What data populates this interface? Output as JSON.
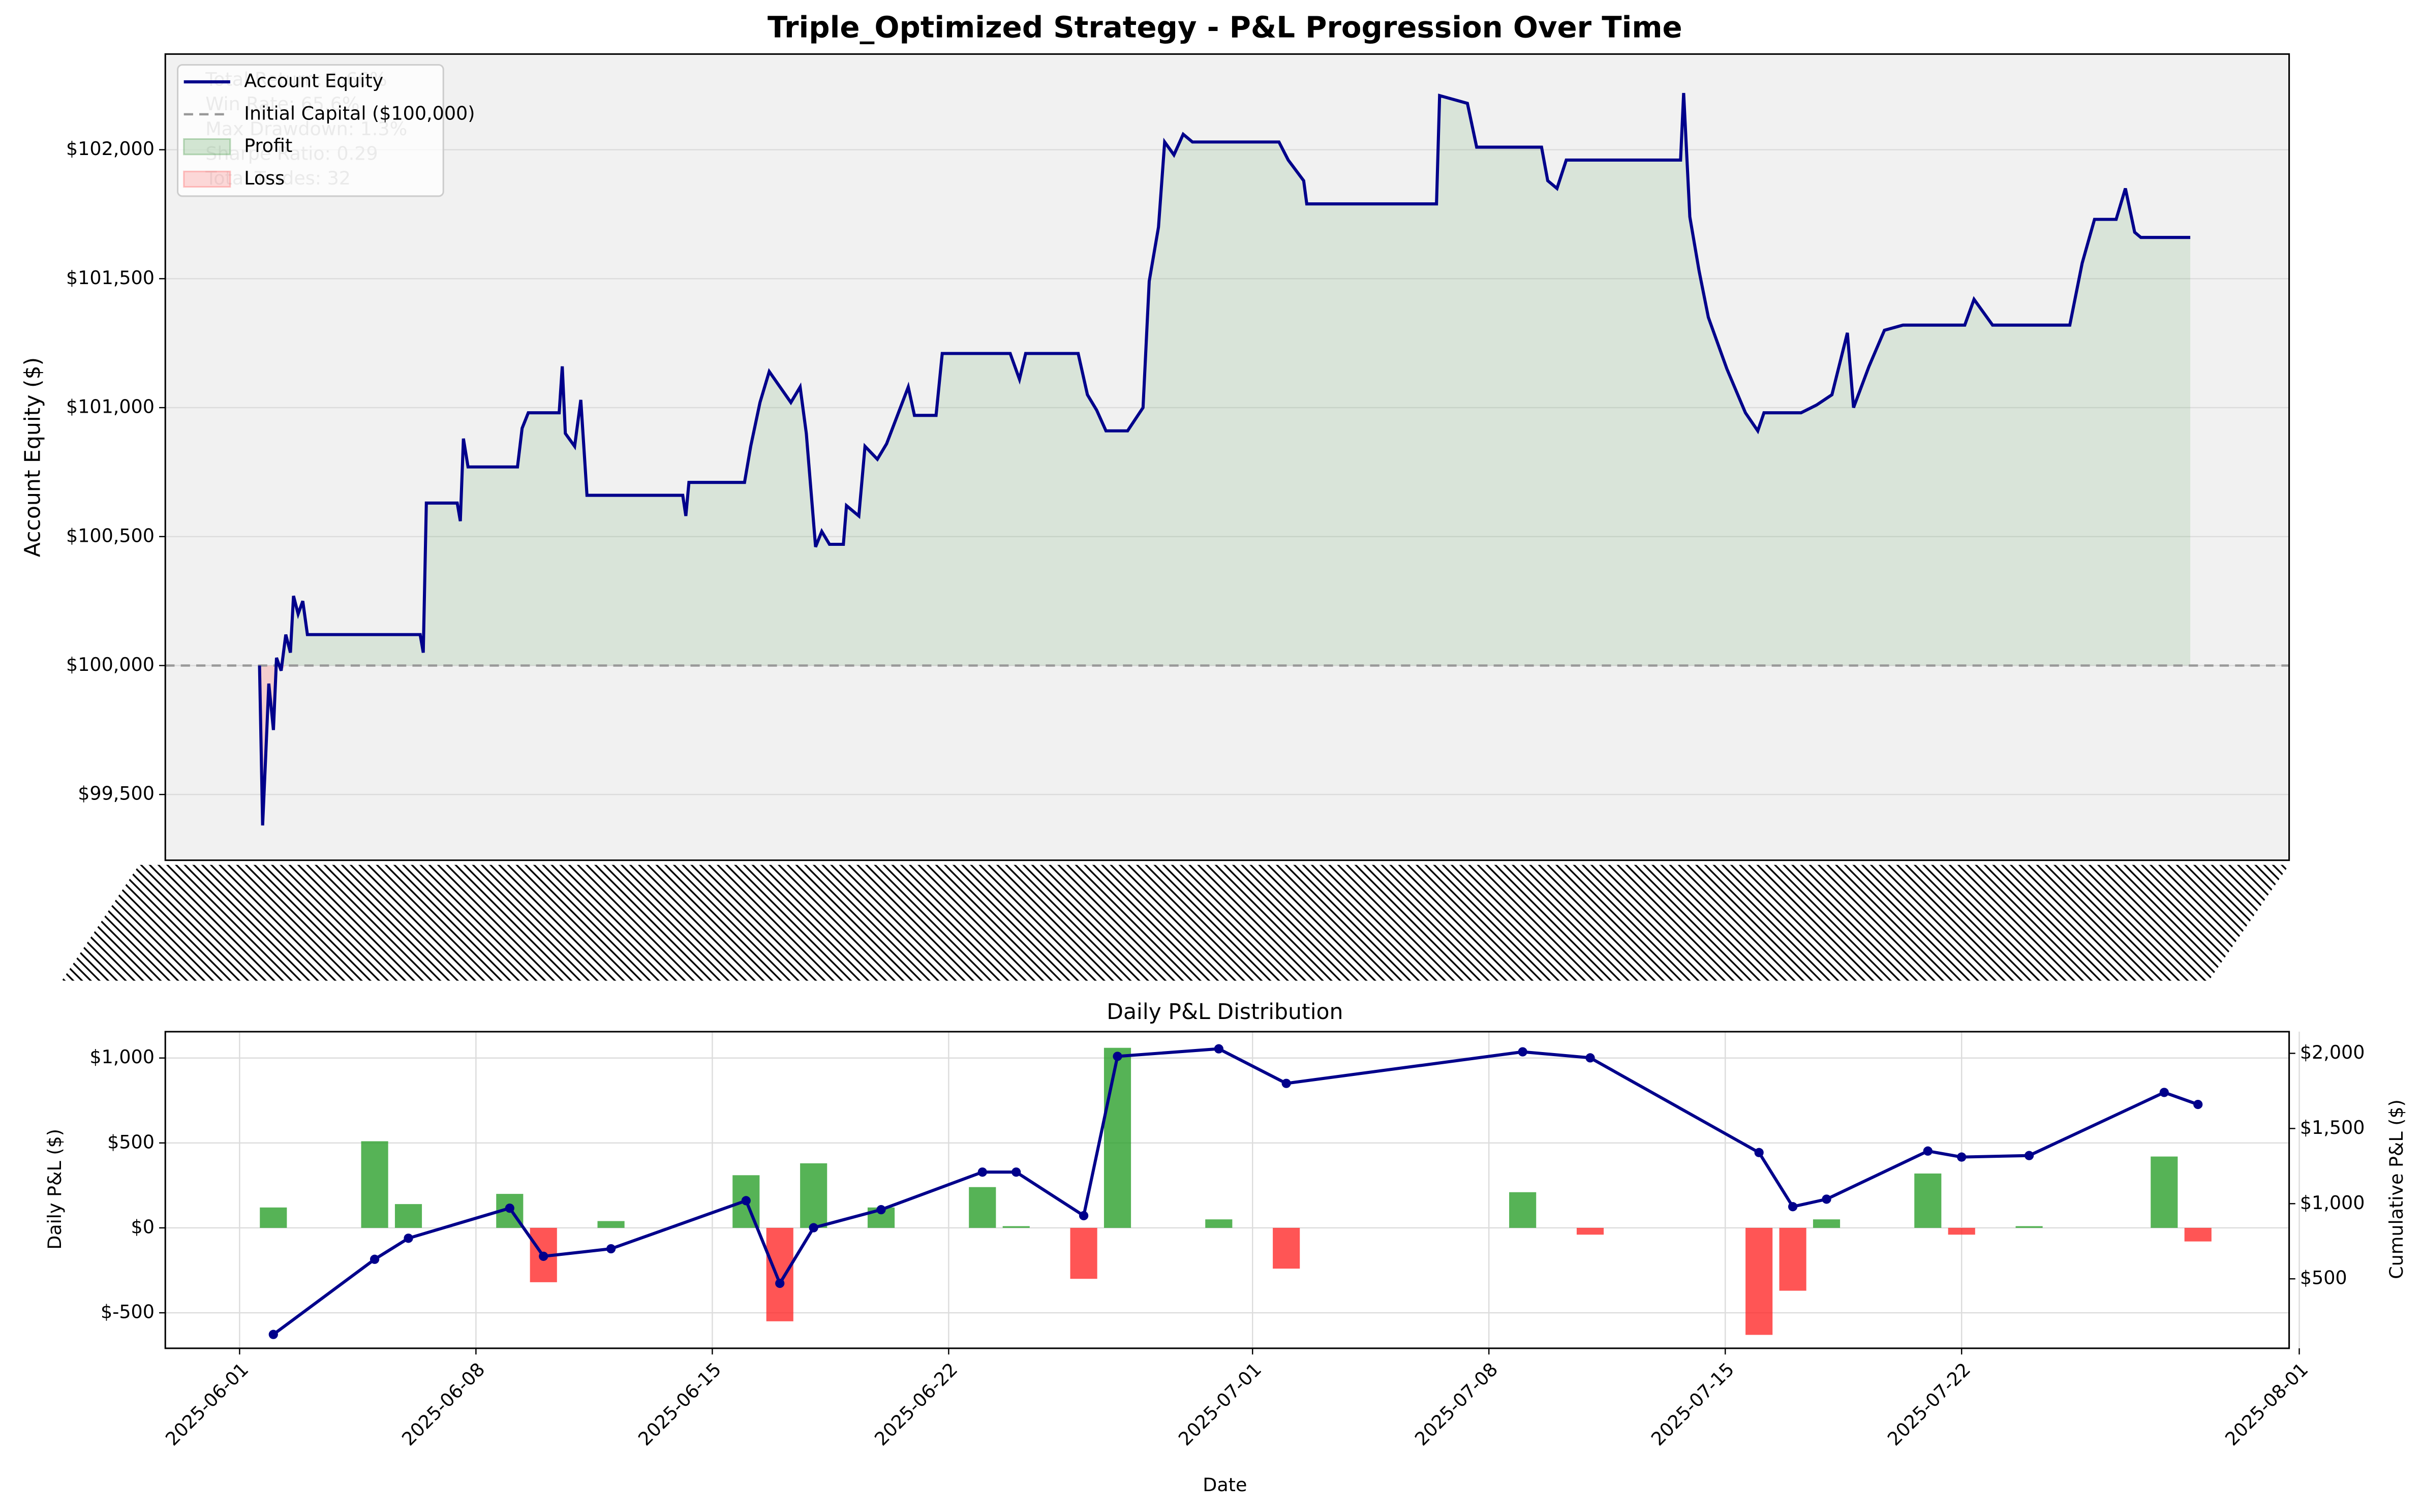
{
  "chart_data": [
    {
      "type": "line",
      "title": "Triple_Optimized Strategy - P&L Progression Over Time",
      "y_label": "Account Equity ($)",
      "x": [
        61,
        63,
        65,
        67,
        70,
        72,
        75,
        78,
        81,
        83,
        86,
        89,
        92,
        165,
        167,
        169,
        189,
        191,
        193,
        196,
        228,
        231,
        235,
        255,
        257,
        259,
        265,
        269,
        273,
        335,
        337,
        339,
        375,
        379,
        385,
        391,
        405,
        411,
        415,
        421,
        425,
        430,
        439,
        441,
        449,
        453,
        461,
        467,
        481,
        485,
        499,
        503,
        547,
        553,
        557,
        591,
        597,
        603,
        609,
        623,
        633,
        637,
        643,
        647,
        653,
        659,
        665,
        721,
        727,
        737,
        739,
        823,
        825,
        843,
        849,
        891,
        895,
        901,
        907,
        981,
        983,
        987,
        993,
        999,
        1011,
        1023,
        1031,
        1035,
        1059,
        1069,
        1079,
        1089,
        1093,
        1103,
        1113,
        1125,
        1165,
        1171,
        1183,
        1233,
        1241,
        1249,
        1263,
        1269,
        1275,
        1279,
        1311
      ],
      "xlim": [
        0,
        1375
      ],
      "series": [
        {
          "name": "Account Equity",
          "color": "#00008b",
          "values": [
            100000,
            99380,
            99650,
            99930,
            99750,
            100030,
            99980,
            100120,
            100050,
            100270,
            100200,
            100250,
            100120,
            100120,
            100050,
            100630,
            100630,
            100560,
            100880,
            100770,
            100770,
            100920,
            100980,
            100980,
            101160,
            100900,
            100850,
            101030,
            100660,
            100660,
            100580,
            100710,
            100710,
            100850,
            101020,
            101140,
            101020,
            101080,
            100900,
            100460,
            100520,
            100470,
            100470,
            100620,
            100580,
            100850,
            100800,
            100860,
            101080,
            100970,
            100970,
            101210,
            101210,
            101110,
            101210,
            101210,
            101050,
            100990,
            100910,
            100910,
            101000,
            101490,
            101700,
            102030,
            101980,
            102060,
            102030,
            102030,
            101960,
            101880,
            101790,
            101790,
            102210,
            102180,
            102010,
            102010,
            101880,
            101850,
            101960,
            101960,
            102220,
            101740,
            101530,
            101350,
            101150,
            100980,
            100910,
            100980,
            100980,
            101010,
            101050,
            101290,
            101000,
            101160,
            101300,
            101320,
            101320,
            101420,
            101320,
            101320,
            101560,
            101730,
            101730,
            101850,
            101680,
            101660,
            101660
          ]
        }
      ],
      "reference": {
        "name": "Initial Capital ($100,000)",
        "value": 100000,
        "color": "#999999"
      },
      "fills": [
        {
          "name": "Profit",
          "color": "#2e8b2e"
        },
        {
          "name": "Loss",
          "color": "#ff4444"
        }
      ],
      "annotations": [
        "Total Return: 1.66%",
        "Win Rate: 65.6%",
        "Max Drawdown: 1.3%",
        "Sharpe Ratio: 0.29",
        "Total Trades: 32"
      ],
      "ylim": [
        99245,
        102371
      ],
      "yticks": [
        {
          "value": 99500,
          "label": "$99,500"
        },
        {
          "value": 100000,
          "label": "$100,000"
        },
        {
          "value": 100500,
          "label": "$100,500"
        },
        {
          "value": 101000,
          "label": "$101,000"
        },
        {
          "value": 101500,
          "label": "$101,500"
        },
        {
          "value": 102000,
          "label": "$102,000"
        }
      ],
      "grid": true
    },
    {
      "type": "bar",
      "title": "Daily P&L Distribution",
      "x_label": "Date",
      "y_label": "Daily P&L ($)",
      "y2_label": "Cumulative P&L ($)",
      "x": [
        "2025-06-02",
        "2025-06-05",
        "2025-06-06",
        "2025-06-09",
        "2025-06-10",
        "2025-06-12",
        "2025-06-16",
        "2025-06-17",
        "2025-06-18",
        "2025-06-20",
        "2025-06-23",
        "2025-06-24",
        "2025-06-26",
        "2025-06-27",
        "2025-06-30",
        "2025-07-02",
        "2025-07-09",
        "2025-07-11",
        "2025-07-16",
        "2025-07-17",
        "2025-07-18",
        "2025-07-21",
        "2025-07-22",
        "2025-07-24",
        "2025-07-28",
        "2025-07-29"
      ],
      "xlim": [
        "2025-05-29T19:12:00Z",
        "2025-07-31T16:48:00Z"
      ],
      "xticks": [
        "2025-06-01",
        "2025-06-08",
        "2025-06-15",
        "2025-06-22",
        "2025-07-01",
        "2025-07-08",
        "2025-07-15",
        "2025-07-22",
        "2025-08-01"
      ],
      "series": [
        {
          "positive_color": "#2ca02c",
          "negative_color": "#ff2a2a",
          "values": [
            120,
            510,
            140,
            200,
            -320,
            40,
            310,
            -550,
            380,
            120,
            240,
            10,
            -300,
            1060,
            50,
            -240,
            210,
            -40,
            -630,
            -370,
            50,
            320,
            -40,
            10,
            420,
            -80
          ]
        },
        {
          "axis": "y2",
          "color": "#00008b",
          "values": [
            130,
            630,
            770,
            970,
            650,
            700,
            1020,
            470,
            840,
            960,
            1210,
            1210,
            920,
            1980,
            2030,
            1800,
            2010,
            1970,
            1340,
            980,
            1030,
            1350,
            1310,
            1320,
            1740,
            1660
          ]
        }
      ],
      "ylim": [
        -709,
        1155
      ],
      "yticks": [
        {
          "value": -500,
          "label": "$-500"
        },
        {
          "value": 0,
          "label": "$0"
        },
        {
          "value": 500,
          "label": "$500"
        },
        {
          "value": 1000,
          "label": "$1,000"
        }
      ],
      "y2lim": [
        38,
        2144
      ],
      "y2ticks": [
        {
          "value": 500,
          "label": "$500"
        },
        {
          "value": 1000,
          "label": "$1,000"
        },
        {
          "value": 1500,
          "label": "$1,500"
        },
        {
          "value": 2000,
          "label": "$2,000"
        }
      ],
      "grid": true
    }
  ]
}
